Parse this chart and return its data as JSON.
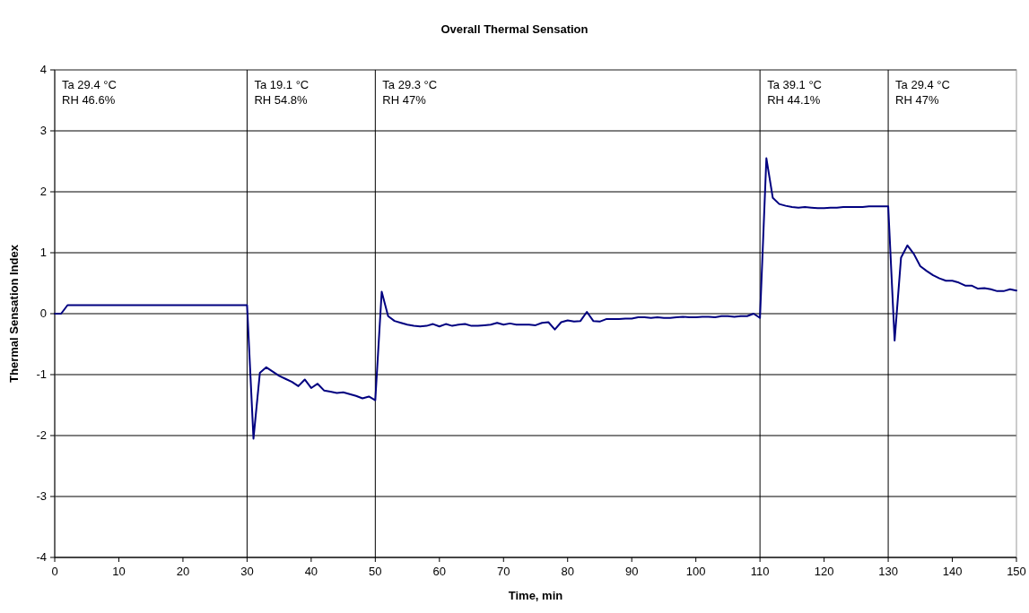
{
  "chart_data": {
    "type": "line",
    "title": "Overall Thermal Sensation",
    "xlabel": "Time, min",
    "ylabel": "Thermal Sensation Index",
    "x": [
      0,
      1,
      2,
      3,
      4,
      5,
      6,
      7,
      8,
      9,
      10,
      11,
      12,
      13,
      14,
      15,
      16,
      17,
      18,
      19,
      20,
      21,
      22,
      23,
      24,
      25,
      26,
      27,
      28,
      29,
      30,
      31,
      32,
      33,
      34,
      35,
      36,
      37,
      38,
      39,
      40,
      41,
      42,
      43,
      44,
      45,
      46,
      47,
      48,
      49,
      50,
      51,
      52,
      53,
      54,
      55,
      56,
      57,
      58,
      59,
      60,
      61,
      62,
      63,
      64,
      65,
      66,
      67,
      68,
      69,
      70,
      71,
      72,
      73,
      74,
      75,
      76,
      77,
      78,
      79,
      80,
      81,
      82,
      83,
      84,
      85,
      86,
      87,
      88,
      89,
      90,
      91,
      92,
      93,
      94,
      95,
      96,
      97,
      98,
      99,
      100,
      101,
      102,
      103,
      104,
      105,
      106,
      107,
      108,
      109,
      110,
      111,
      112,
      113,
      114,
      115,
      116,
      117,
      118,
      119,
      120,
      121,
      122,
      123,
      124,
      125,
      126,
      127,
      128,
      129,
      130,
      131,
      132,
      133,
      134,
      135,
      136,
      137,
      138,
      139,
      140,
      141,
      142,
      143,
      144,
      145,
      146,
      147,
      148,
      149,
      150
    ],
    "series": [
      {
        "color": "#000080",
        "values": [
          0,
          0,
          0.14,
          0.14,
          0.14,
          0.14,
          0.14,
          0.14,
          0.14,
          0.14,
          0.14,
          0.14,
          0.14,
          0.14,
          0.14,
          0.14,
          0.14,
          0.14,
          0.14,
          0.14,
          0.14,
          0.14,
          0.14,
          0.14,
          0.14,
          0.14,
          0.14,
          0.14,
          0.14,
          0.14,
          0.14,
          -2.05,
          -0.97,
          -0.88,
          -0.95,
          -1.02,
          -1.07,
          -1.12,
          -1.19,
          -1.08,
          -1.22,
          -1.15,
          -1.26,
          -1.28,
          -1.3,
          -1.29,
          -1.32,
          -1.35,
          -1.39,
          -1.36,
          -1.42,
          0.36,
          -0.04,
          -0.12,
          -0.15,
          -0.18,
          -0.2,
          -0.21,
          -0.2,
          -0.17,
          -0.21,
          -0.17,
          -0.2,
          -0.18,
          -0.17,
          -0.2,
          -0.2,
          -0.19,
          -0.18,
          -0.15,
          -0.18,
          -0.16,
          -0.18,
          -0.18,
          -0.18,
          -0.19,
          -0.15,
          -0.14,
          -0.26,
          -0.14,
          -0.11,
          -0.13,
          -0.12,
          0.03,
          -0.12,
          -0.13,
          -0.09,
          -0.09,
          -0.09,
          -0.08,
          -0.08,
          -0.06,
          -0.06,
          -0.07,
          -0.06,
          -0.07,
          -0.07,
          -0.06,
          -0.05,
          -0.06,
          -0.06,
          -0.05,
          -0.05,
          -0.06,
          -0.04,
          -0.04,
          -0.05,
          -0.04,
          -0.04,
          0,
          -0.07,
          2.55,
          1.9,
          1.8,
          1.77,
          1.75,
          1.74,
          1.75,
          1.74,
          1.73,
          1.73,
          1.74,
          1.74,
          1.75,
          1.75,
          1.75,
          1.75,
          1.76,
          1.76,
          1.76,
          1.76,
          -0.44,
          0.92,
          1.12,
          0.98,
          0.78,
          0.7,
          0.63,
          0.58,
          0.54,
          0.54,
          0.51,
          0.46,
          0.46,
          0.41,
          0.42,
          0.4,
          0.37,
          0.37,
          0.4,
          0.38
        ]
      }
    ],
    "xlim": [
      0,
      150
    ],
    "xticks": [
      0,
      10,
      20,
      30,
      40,
      50,
      60,
      70,
      80,
      90,
      100,
      110,
      120,
      130,
      140,
      150
    ],
    "ylim": [
      -4,
      4
    ],
    "yticks": [
      -4,
      -3,
      -2,
      -1,
      0,
      1,
      2,
      3,
      4
    ],
    "grid": "y",
    "marker": "none",
    "line_style": "solid",
    "annotations": [
      "Ta 29.4 °C\nRH 46.6%"
    ],
    "ref_lines": [
      {
        "axis": "x",
        "value": 30,
        "label": "Ta 19.1 °C\nRH 54.8%"
      },
      {
        "axis": "x",
        "value": 50,
        "label": "Ta 29.3 °C\nRH 47%"
      },
      {
        "axis": "x",
        "value": 110,
        "label": "Ta 39.1 °C\nRH 44.1%"
      },
      {
        "axis": "x",
        "value": 130,
        "label": "Ta 29.4 °C\nRH 47%"
      }
    ]
  }
}
